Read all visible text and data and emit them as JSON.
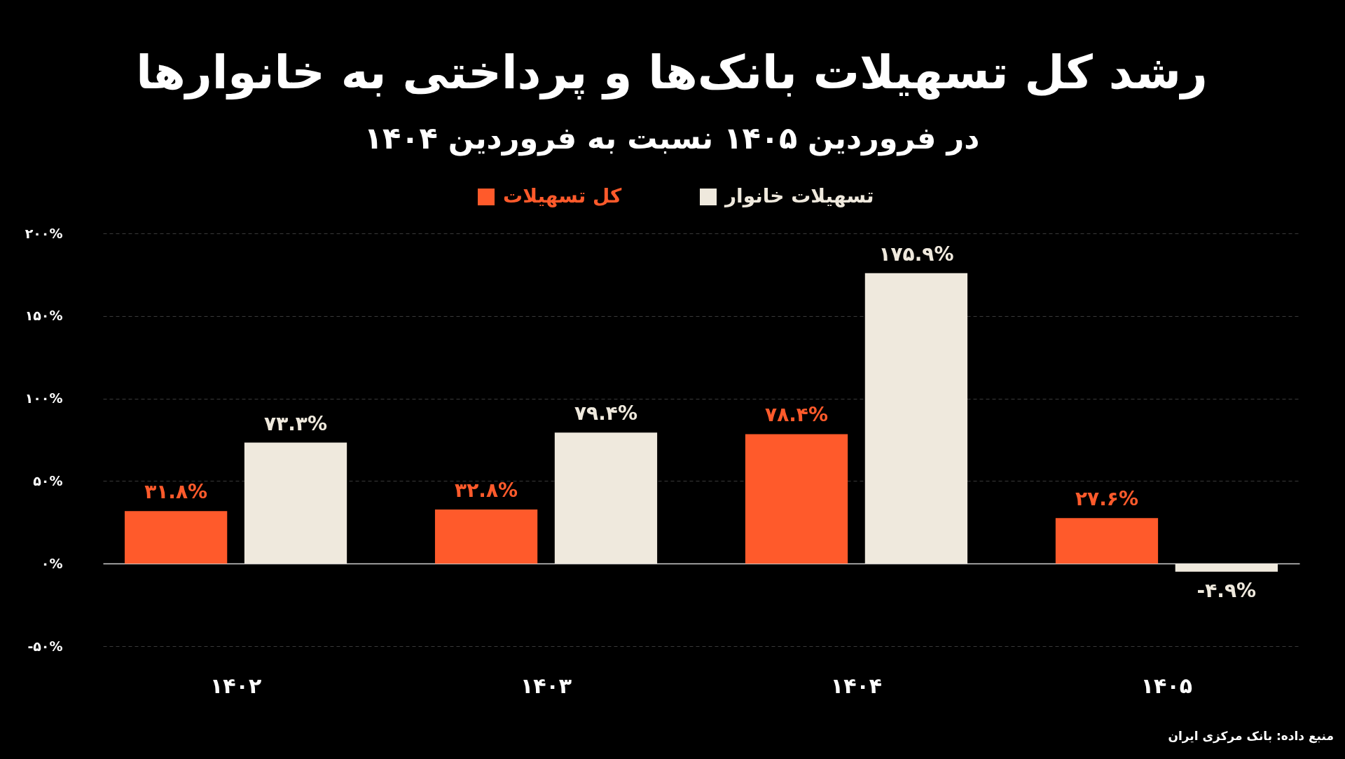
{
  "chart_data": {
    "type": "bar",
    "title": "رشد کل تسهیلات بانک‌ها و پرداختی به خانوارها",
    "subtitle": "در فروردین ۱۴۰۵ نسبت به فروردین ۱۴۰۴",
    "categories": [
      "۱۴۰۲",
      "۱۴۰۳",
      "۱۴۰۴",
      "۱۴۰۵"
    ],
    "series": [
      {
        "name": "کل تسهیلات",
        "color": "#ff5a2b",
        "values": [
          31.8,
          32.8,
          78.4,
          27.6
        ],
        "value_labels": [
          "۳۱.۸%",
          "۳۲.۸%",
          "۷۸.۴%",
          "۲۷.۶%"
        ]
      },
      {
        "name": "تسهیلات خانوار",
        "color": "#efe9dd",
        "values": [
          73.3,
          79.4,
          175.9,
          -4.9
        ],
        "value_labels": [
          "۷۳.۳%",
          "۷۹.۴%",
          "۱۷۵.۹%",
          "-۴.۹%"
        ]
      }
    ],
    "ylim": [
      -50,
      200
    ],
    "yticks": [
      {
        "value": -50,
        "label": "-۵۰%"
      },
      {
        "value": 0,
        "label": "۰%"
      },
      {
        "value": 50,
        "label": "۵۰%"
      },
      {
        "value": 100,
        "label": "۱۰۰%"
      },
      {
        "value": 150,
        "label": "۱۵۰%"
      },
      {
        "value": 200,
        "label": "۲۰۰%"
      }
    ],
    "grid": "y",
    "legend": "top",
    "annotations": [
      "منبع داده: بانک مرکزی ایران"
    ]
  }
}
